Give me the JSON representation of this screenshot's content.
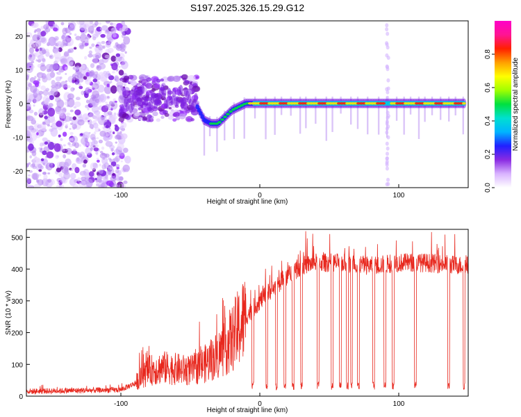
{
  "title": "S197.2025.326.15.29.G12",
  "chart_data": [
    {
      "type": "heatmap",
      "name": "spectrogram",
      "title": "S197.2025.326.15.29.G12",
      "xlabel": "Height of straight line (km)",
      "ylabel": "Frequency (Hz)",
      "xlim": [
        -168,
        150
      ],
      "ylim": [
        -25,
        24.5
      ],
      "xticks": [
        -100,
        0,
        100
      ],
      "xtick_labels": [
        "-100",
        "0",
        "100"
      ],
      "yticks": [
        -20,
        -10,
        0,
        10,
        20
      ],
      "ytick_labels": [
        "-20",
        "-10",
        "0",
        "10",
        "20"
      ],
      "grid": false,
      "ridge": {
        "x": [
          -100,
          -90,
          -80,
          -70,
          -60,
          -50,
          -45,
          -40,
          -35,
          -30,
          -25,
          -20,
          -15,
          -10,
          -5,
          0,
          20,
          60,
          100,
          150
        ],
        "freq": [
          0,
          1,
          2,
          2,
          2,
          2,
          -1,
          -5,
          -6,
          -6,
          -4,
          -2,
          -1,
          0,
          0,
          0,
          0,
          0,
          0,
          0
        ]
      },
      "dropouts_x": [
        92
      ],
      "colorbar": {
        "label": "Normalized spectral amplitude",
        "range": [
          0,
          1
        ],
        "ticks": [
          0.0,
          0.2,
          0.4,
          0.6,
          0.8
        ],
        "tick_labels": [
          "0.0",
          "0.2",
          "0.4",
          "0.6",
          "0.8"
        ],
        "colors": [
          "#ffffff",
          "#d9b3ff",
          "#8a2be2",
          "#2020ff",
          "#00b4ff",
          "#00e0d0",
          "#00e040",
          "#a0ff00",
          "#ffff00",
          "#ffa000",
          "#ff2000",
          "#ff1493",
          "#ff00c8"
        ]
      }
    },
    {
      "type": "line",
      "name": "snr",
      "xlabel": "Height of straight line (km)",
      "ylabel": "SNR (10 * v/v)",
      "xlim": [
        -168,
        150
      ],
      "ylim": [
        0,
        525
      ],
      "xticks": [
        -100,
        0,
        100
      ],
      "xtick_labels": [
        "-100",
        "0",
        "100"
      ],
      "yticks": [
        0,
        100,
        200,
        300,
        400,
        500
      ],
      "ytick_labels": [
        "0",
        "100",
        "200",
        "300",
        "400",
        "500"
      ],
      "line_color": "#e8281e",
      "grid": false,
      "envelope": {
        "x": [
          -168,
          -100,
          -90,
          -80,
          -70,
          -60,
          -50,
          -40,
          -30,
          -20,
          -10,
          0,
          10,
          20,
          30,
          40,
          60,
          80,
          100,
          120,
          150
        ],
        "y": [
          15,
          20,
          40,
          80,
          90,
          85,
          80,
          100,
          130,
          180,
          250,
          300,
          340,
          380,
          410,
          420,
          420,
          410,
          420,
          420,
          410
        ]
      },
      "dips_x": [
        -5,
        5,
        12,
        18,
        24,
        30,
        42,
        52,
        58,
        63,
        66,
        71,
        82,
        90,
        96,
        112,
        136,
        147
      ]
    }
  ]
}
